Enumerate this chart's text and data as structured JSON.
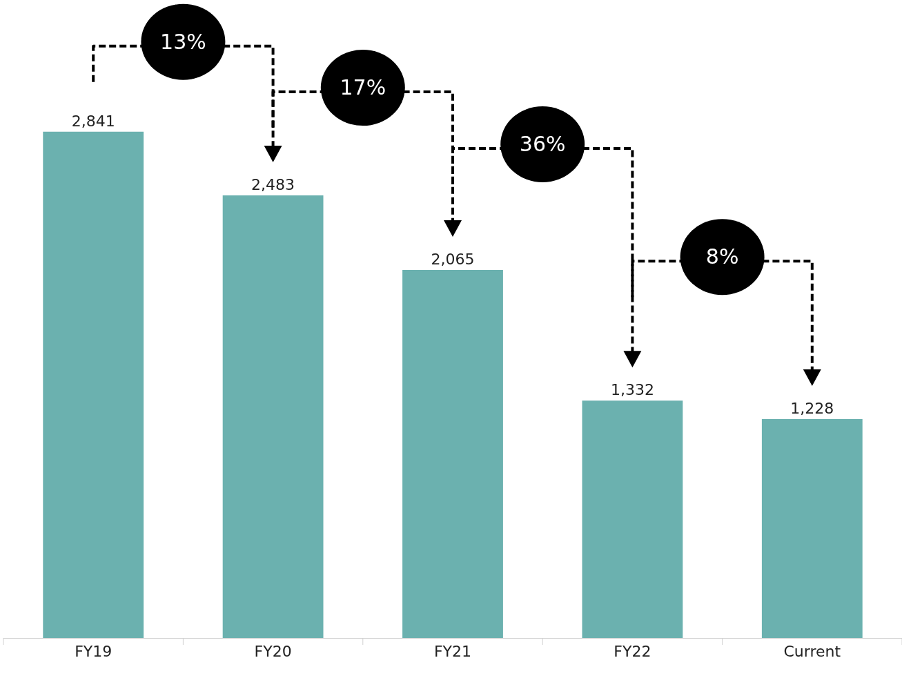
{
  "chart_data": {
    "type": "bar",
    "categories": [
      "FY19",
      "FY20",
      "FY21",
      "FY22",
      "Current"
    ],
    "values": [
      2841,
      2483,
      2065,
      1332,
      1228
    ],
    "value_labels": [
      "2,841",
      "2,483",
      "2,065",
      "1,332",
      "1,228"
    ],
    "color": "#6bb1af",
    "annotations": [
      "13%",
      "17%",
      "36%",
      "8%"
    ]
  }
}
